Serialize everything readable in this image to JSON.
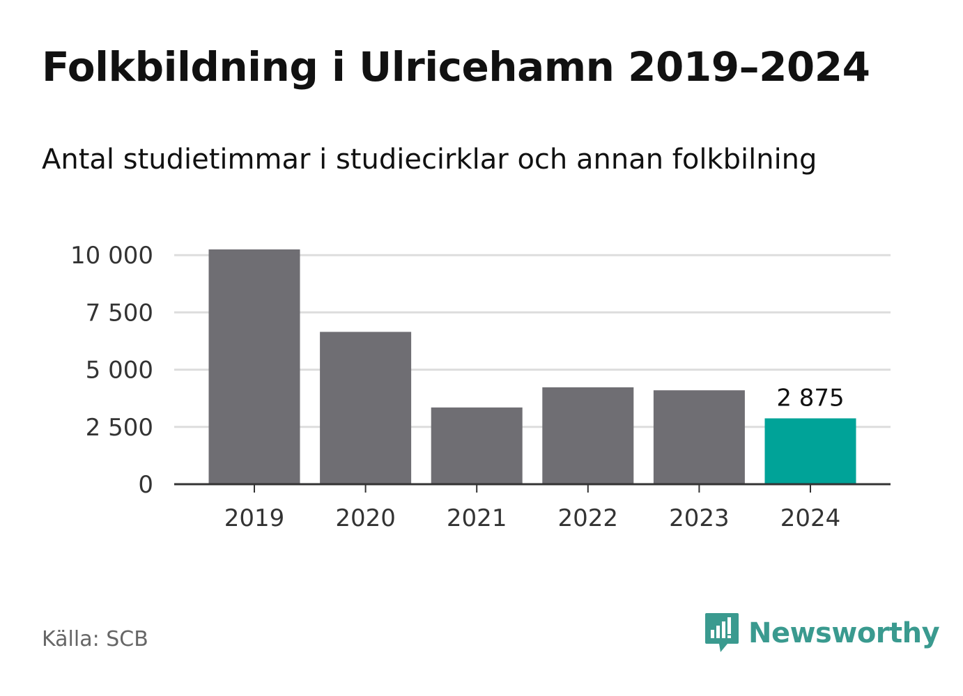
{
  "title": "Folkbildning i Ulricehamn 2019–2024",
  "subtitle": "Antal studietimmar i studiecirklar och annan folkbilning",
  "source": "Källa: SCB",
  "brand": {
    "name": "Newsworthy",
    "icon": "newsworthy-logo-icon",
    "color": "#3a9a8f"
  },
  "colors": {
    "bar": "#6f6e73",
    "highlight": "#00a398",
    "grid": "#dddddd",
    "axis": "#333333"
  },
  "chart_data": {
    "type": "bar",
    "categories": [
      "2019",
      "2020",
      "2021",
      "2022",
      "2023",
      "2024"
    ],
    "values": [
      10250,
      6650,
      3350,
      4230,
      4100,
      2875
    ],
    "yticks": [
      0,
      2500,
      5000,
      7500,
      10000
    ],
    "ytick_labels": [
      "0",
      "2 500",
      "5 000",
      "7 500",
      "10 000"
    ],
    "ylim": [
      0,
      10250
    ],
    "highlight_index": 5,
    "data_labels": [
      {
        "index": 5,
        "text": "2 875"
      }
    ],
    "grid": true,
    "legend": "none"
  }
}
